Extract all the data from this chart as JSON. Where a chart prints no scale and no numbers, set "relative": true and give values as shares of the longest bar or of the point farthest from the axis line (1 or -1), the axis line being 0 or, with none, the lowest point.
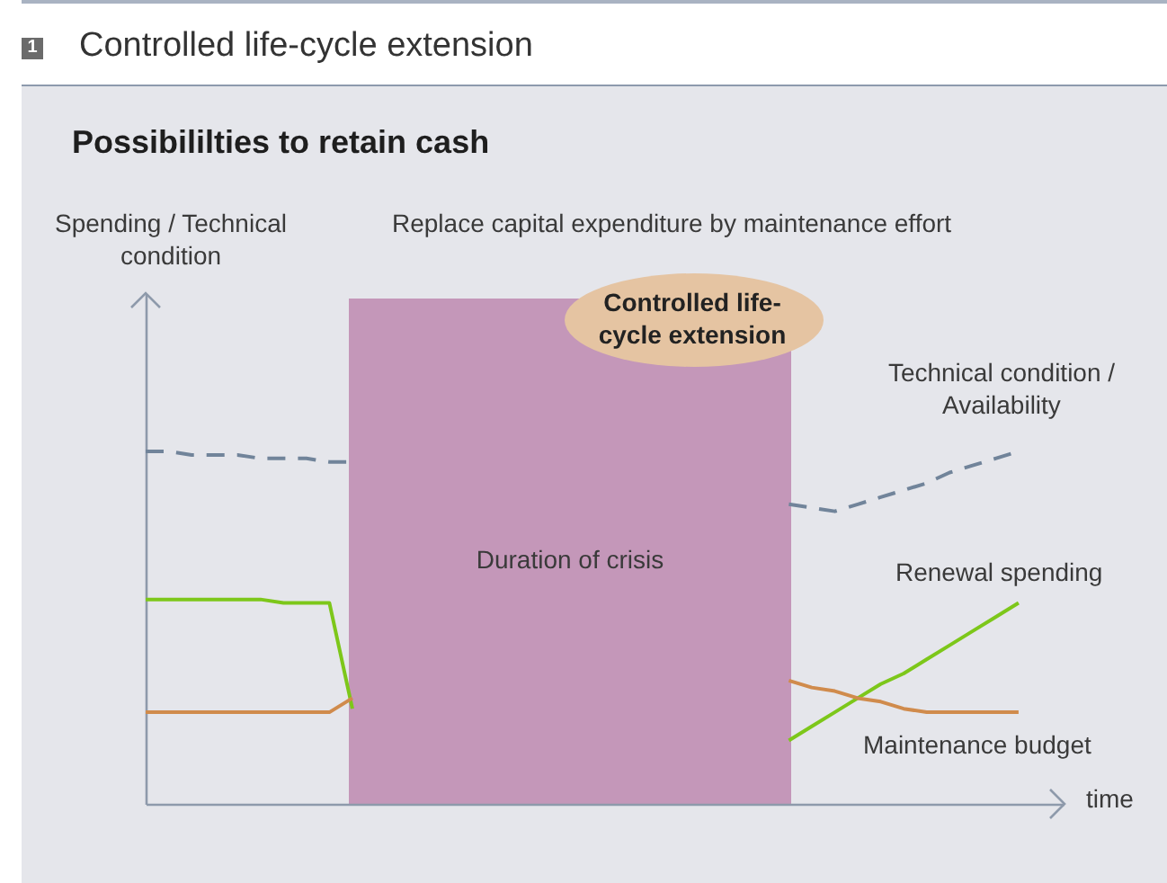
{
  "chart_data": {
    "type": "line",
    "title": "Controlled life-cycle extension",
    "subtitle": "Possibililties to retain cash",
    "annotations": [
      "1",
      "Replace capital expenditure by maintenance effort",
      "Controlled life-cycle extension",
      "Spending / Technical condition",
      "Duration of crisis",
      "time"
    ],
    "relative": true,
    "legend": false,
    "categories": [
      null,
      null,
      null,
      null,
      null,
      null,
      null,
      null,
      null,
      null,
      null,
      null,
      null,
      null,
      null,
      null,
      null,
      null,
      null,
      null,
      null,
      null,
      null,
      null,
      null,
      null,
      null,
      null,
      null,
      null,
      null,
      null,
      null,
      null,
      null,
      null,
      null,
      null,
      null,
      null,
      null
    ],
    "series": [
      {
        "color": "#71849a",
        "line_style": "dashed",
        "values": [
          1.0,
          1.0,
          0.99,
          0.99,
          0.99,
          0.98,
          0.98,
          0.98,
          0.97,
          0.97,
          null,
          null,
          null,
          null,
          null,
          null,
          null,
          null,
          null,
          null,
          null,
          null,
          null,
          null,
          null,
          null,
          null,
          null,
          null,
          null,
          null,
          null,
          null,
          null,
          null,
          null,
          null,
          null,
          null,
          null,
          null
        ]
      },
      {
        "color": "#7dc71a",
        "line_style": "solid",
        "values": [
          0.58,
          0.58,
          0.58,
          0.58,
          0.58,
          0.58,
          0.57,
          0.57,
          0.57,
          0.27,
          null,
          null,
          null,
          null,
          null,
          null,
          null,
          null,
          null,
          null,
          null,
          null,
          null,
          null,
          null,
          null,
          null,
          null,
          null,
          null,
          null,
          null,
          null,
          null,
          null,
          null,
          null,
          null,
          null,
          null,
          null
        ]
      },
      {
        "color": "#d08b4c",
        "line_style": "solid",
        "values": [
          0.26,
          0.26,
          0.26,
          0.26,
          0.26,
          0.26,
          0.26,
          0.26,
          0.26,
          0.3,
          null,
          null,
          null,
          null,
          null,
          null,
          null,
          null,
          null,
          null,
          null,
          null,
          null,
          null,
          null,
          null,
          null,
          null,
          null,
          null,
          null,
          null,
          null,
          null,
          null,
          null,
          null,
          null,
          null,
          null,
          null
        ]
      },
      {
        "name": "Technical condition / Availability",
        "color": "#71849a",
        "line_style": "dashed",
        "values": [
          null,
          null,
          null,
          null,
          null,
          null,
          null,
          null,
          null,
          null,
          null,
          null,
          null,
          null,
          null,
          null,
          null,
          null,
          null,
          null,
          null,
          null,
          null,
          null,
          null,
          null,
          null,
          null,
          0.85,
          0.84,
          0.83,
          0.85,
          0.87,
          0.89,
          0.91,
          0.94,
          0.96,
          0.98,
          1.0,
          null,
          null
        ]
      },
      {
        "name": "Renewal spending",
        "color": "#7dc71a",
        "line_style": "solid",
        "values": [
          null,
          null,
          null,
          null,
          null,
          null,
          null,
          null,
          null,
          null,
          null,
          null,
          null,
          null,
          null,
          null,
          null,
          null,
          null,
          null,
          null,
          null,
          null,
          null,
          null,
          null,
          null,
          null,
          0.18,
          0.22,
          0.26,
          0.3,
          0.34,
          0.37,
          0.41,
          0.45,
          0.49,
          0.53,
          0.57,
          null,
          null
        ]
      },
      {
        "name": "Maintenance budget",
        "color": "#d08b4c",
        "line_style": "solid",
        "values": [
          null,
          null,
          null,
          null,
          null,
          null,
          null,
          null,
          null,
          null,
          null,
          null,
          null,
          null,
          null,
          null,
          null,
          null,
          null,
          null,
          null,
          null,
          null,
          null,
          null,
          null,
          null,
          null,
          0.35,
          0.33,
          0.32,
          0.3,
          0.29,
          0.27,
          0.26,
          0.26,
          0.26,
          0.26,
          0.26,
          null,
          null
        ]
      }
    ]
  }
}
